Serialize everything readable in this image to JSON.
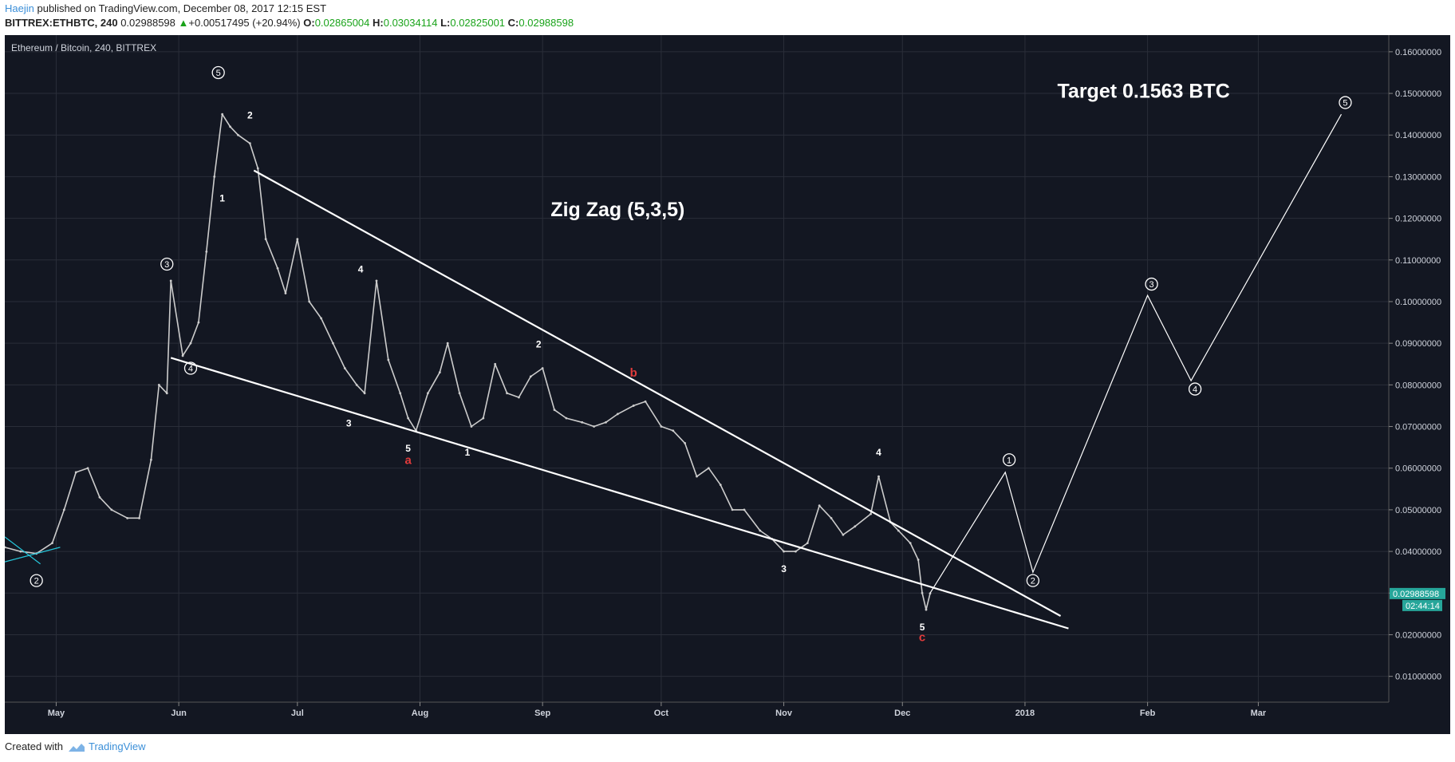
{
  "header": {
    "author": "Haejin",
    "published_text": "published on TradingView.com, December 08, 2017 12:15 EST",
    "symbol": "BITTREX:ETHBTC, 240",
    "last": "0.02988598",
    "arrow": "▲",
    "change": "+0.00517495 (+20.94%)",
    "o_label": "O:",
    "o_value": "0.02865004",
    "h_label": "H:",
    "h_value": "0.03034114",
    "l_label": "L:",
    "l_value": "0.02825001",
    "c_label": "C:",
    "c_value": "0.02988598"
  },
  "footer": {
    "created_with": "Created with",
    "brand": "TradingView"
  },
  "colors": {
    "background": "#131722",
    "grid": "#2a2e39",
    "text": "#cfd3dc",
    "white": "#ffffff",
    "red": "#e03b3b",
    "cyan": "#26c6da",
    "candle": "#cccccc",
    "price_tag": "#26a69a",
    "up": "#1aa31a",
    "link": "#3b8fd8"
  },
  "chart_data": {
    "type": "line",
    "title": "Ethereum / Bitcoin, 240, BITTREX",
    "x_ticks": [
      "May",
      "Jun",
      "Jul",
      "Aug",
      "Sep",
      "Oct",
      "Nov",
      "Dec",
      "2018",
      "Feb",
      "Mar"
    ],
    "x_tick_dates": [
      "2017-05-01",
      "2017-06-01",
      "2017-07-01",
      "2017-08-01",
      "2017-09-01",
      "2017-10-01",
      "2017-11-01",
      "2017-12-01",
      "2018-01-01",
      "2018-02-01",
      "2018-03-01"
    ],
    "xlim": [
      "2017-04-18",
      "2018-04-03"
    ],
    "ylim": [
      0.0038,
      0.164
    ],
    "y_ticks": [
      "0.01000000",
      "0.02000000",
      "0.03000000",
      "0.04000000",
      "0.05000000",
      "0.06000000",
      "0.07000000",
      "0.08000000",
      "0.09000000",
      "0.10000000",
      "0.11000000",
      "0.12000000",
      "0.13000000",
      "0.14000000",
      "0.15000000",
      "0.16000000"
    ],
    "grid": true,
    "price_series": {
      "name": "ETHBTC",
      "x": [
        "2017-04-18",
        "2017-04-22",
        "2017-04-26",
        "2017-04-30",
        "2017-05-03",
        "2017-05-06",
        "2017-05-09",
        "2017-05-12",
        "2017-05-15",
        "2017-05-19",
        "2017-05-22",
        "2017-05-25",
        "2017-05-27",
        "2017-05-29",
        "2017-05-30",
        "2017-06-02",
        "2017-06-04",
        "2017-06-06",
        "2017-06-08",
        "2017-06-10",
        "2017-06-12",
        "2017-06-14",
        "2017-06-16",
        "2017-06-19",
        "2017-06-21",
        "2017-06-23",
        "2017-06-26",
        "2017-06-28",
        "2017-07-01",
        "2017-07-04",
        "2017-07-07",
        "2017-07-10",
        "2017-07-13",
        "2017-07-16",
        "2017-07-18",
        "2017-07-21",
        "2017-07-24",
        "2017-07-27",
        "2017-07-29",
        "2017-07-31",
        "2017-08-03",
        "2017-08-06",
        "2017-08-08",
        "2017-08-11",
        "2017-08-14",
        "2017-08-17",
        "2017-08-20",
        "2017-08-23",
        "2017-08-26",
        "2017-08-29",
        "2017-09-01",
        "2017-09-04",
        "2017-09-07",
        "2017-09-11",
        "2017-09-14",
        "2017-09-17",
        "2017-09-20",
        "2017-09-24",
        "2017-09-27",
        "2017-10-01",
        "2017-10-04",
        "2017-10-07",
        "2017-10-10",
        "2017-10-13",
        "2017-10-16",
        "2017-10-19",
        "2017-10-22",
        "2017-10-26",
        "2017-10-29",
        "2017-11-01",
        "2017-11-04",
        "2017-11-07",
        "2017-11-10",
        "2017-11-13",
        "2017-11-16",
        "2017-11-19",
        "2017-11-23",
        "2017-11-25",
        "2017-11-28",
        "2017-11-30",
        "2017-12-03",
        "2017-12-05",
        "2017-12-06",
        "2017-12-07",
        "2017-12-08"
      ],
      "values": [
        0.041,
        0.04,
        0.0395,
        0.042,
        0.05,
        0.059,
        0.06,
        0.053,
        0.05,
        0.048,
        0.048,
        0.062,
        0.08,
        0.078,
        0.105,
        0.087,
        0.09,
        0.095,
        0.112,
        0.13,
        0.145,
        0.142,
        0.14,
        0.138,
        0.132,
        0.115,
        0.108,
        0.102,
        0.115,
        0.1,
        0.096,
        0.09,
        0.084,
        0.08,
        0.078,
        0.105,
        0.086,
        0.078,
        0.072,
        0.069,
        0.078,
        0.083,
        0.09,
        0.078,
        0.07,
        0.072,
        0.085,
        0.078,
        0.077,
        0.082,
        0.084,
        0.074,
        0.072,
        0.071,
        0.07,
        0.071,
        0.073,
        0.075,
        0.076,
        0.07,
        0.069,
        0.066,
        0.058,
        0.06,
        0.056,
        0.05,
        0.05,
        0.045,
        0.043,
        0.04,
        0.04,
        0.042,
        0.051,
        0.048,
        0.044,
        0.046,
        0.049,
        0.058,
        0.047,
        0.045,
        0.042,
        0.038,
        0.03,
        0.026,
        0.0299
      ]
    },
    "trendlines": [
      {
        "name": "upper-trendline",
        "x": [
          "2017-06-20",
          "2018-01-10"
        ],
        "y": [
          0.1315,
          0.0245
        ]
      },
      {
        "name": "lower-trendline",
        "x": [
          "2017-05-30",
          "2018-01-12"
        ],
        "y": [
          0.0865,
          0.0215
        ]
      }
    ],
    "projection": {
      "x": [
        "2017-12-08",
        "2017-12-27",
        "2018-01-03",
        "2018-02-01",
        "2018-02-12",
        "2018-03-22"
      ],
      "y": [
        0.03,
        0.059,
        0.035,
        0.1015,
        0.081,
        0.145
      ]
    },
    "annotations": {
      "titles": [
        {
          "text": "Zig Zag (5,3,5)",
          "x": "2017-09-20",
          "y": 0.1205
        },
        {
          "text": "Target 0.1563 BTC",
          "x": "2018-01-31",
          "y": 0.149
        }
      ],
      "circled": [
        {
          "text": "2",
          "x": "2017-04-26",
          "y": 0.033
        },
        {
          "text": "3",
          "x": "2017-05-29",
          "y": 0.109
        },
        {
          "text": "4",
          "x": "2017-06-04",
          "y": 0.084
        },
        {
          "text": "5",
          "x": "2017-06-11",
          "y": 0.155
        },
        {
          "text": "1",
          "x": "2017-12-28",
          "y": 0.062
        },
        {
          "text": "2",
          "x": "2018-01-03",
          "y": 0.033
        },
        {
          "text": "3",
          "x": "2018-02-02",
          "y": 0.1042
        },
        {
          "text": "4",
          "x": "2018-02-13",
          "y": 0.079
        },
        {
          "text": "5",
          "x": "2018-03-23",
          "y": 0.1478
        }
      ],
      "labels": [
        {
          "text": "1",
          "x": "2017-06-12",
          "y": 0.124,
          "color": "white"
        },
        {
          "text": "2",
          "x": "2017-06-19",
          "y": 0.144,
          "color": "white"
        },
        {
          "text": "3",
          "x": "2017-07-14",
          "y": 0.07,
          "color": "white"
        },
        {
          "text": "4",
          "x": "2017-07-17",
          "y": 0.107,
          "color": "white"
        },
        {
          "text": "5",
          "x": "2017-07-29",
          "y": 0.064,
          "color": "white"
        },
        {
          "text": "a",
          "x": "2017-07-29",
          "y": 0.061,
          "color": "red"
        },
        {
          "text": "1",
          "x": "2017-08-13",
          "y": 0.063,
          "color": "white"
        },
        {
          "text": "2",
          "x": "2017-08-31",
          "y": 0.089,
          "color": "white"
        },
        {
          "text": "b",
          "x": "2017-09-24",
          "y": 0.082,
          "color": "red"
        },
        {
          "text": "3",
          "x": "2017-11-01",
          "y": 0.035,
          "color": "white"
        },
        {
          "text": "4",
          "x": "2017-11-25",
          "y": 0.063,
          "color": "white"
        },
        {
          "text": "5",
          "x": "2017-12-06",
          "y": 0.021,
          "color": "white"
        },
        {
          "text": "c",
          "x": "2017-12-06",
          "y": 0.0185,
          "color": "red"
        }
      ]
    },
    "price_tag": "0.02988598",
    "countdown": "02:44:14"
  }
}
